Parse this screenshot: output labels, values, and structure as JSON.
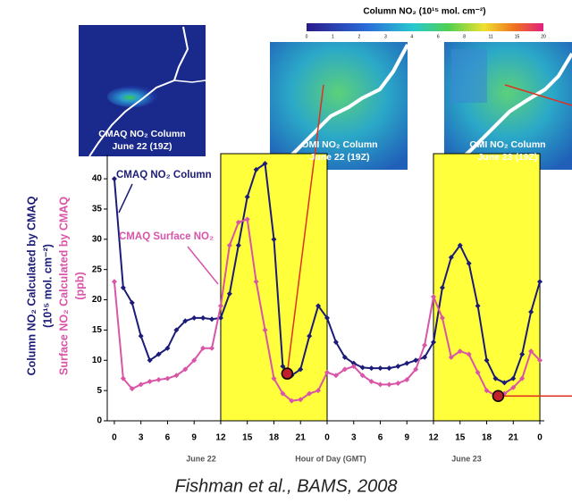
{
  "chart_data": {
    "type": "line",
    "x": [
      0,
      1,
      2,
      3,
      4,
      5,
      6,
      7,
      8,
      9,
      10,
      11,
      12,
      13,
      14,
      15,
      16,
      17,
      18,
      19,
      20,
      21,
      22,
      23,
      24,
      25,
      26,
      27,
      28,
      29,
      30,
      31,
      32,
      33,
      34,
      35,
      36,
      37,
      38,
      39,
      40,
      41,
      42,
      43,
      44,
      45,
      46,
      47,
      48
    ],
    "series": [
      {
        "name": "CMAQ  NO₂ Column",
        "color": "#1c1c78",
        "axis_label": [
          "Column NO₂ Calculated by CMAQ",
          "(10¹⁵ mol. cm⁻²)"
        ],
        "values": [
          40,
          22,
          19.5,
          14,
          10,
          11,
          12,
          15,
          16.5,
          17,
          17,
          16.8,
          17,
          21,
          29,
          37,
          41.5,
          42.5,
          30,
          9,
          7.5,
          8.5,
          14,
          19,
          17,
          13,
          10.5,
          9.5,
          8.8,
          8.7,
          8.7,
          8.7,
          9,
          9.5,
          10,
          10.5,
          13,
          22,
          27,
          29,
          26,
          19,
          10,
          7,
          6.3,
          7,
          11,
          18,
          23
        ]
      },
      {
        "name": "CMAQ Surface NO₂",
        "color": "#d855a8",
        "axis_label": [
          "Surface NO₂ Calculated by CMAQ",
          "(ppb)"
        ],
        "values": [
          23,
          7,
          5.3,
          6,
          6.5,
          6.8,
          7,
          7.5,
          8.5,
          10,
          12,
          12,
          19,
          29,
          32.8,
          33.3,
          23,
          15,
          7,
          4.5,
          3.3,
          3.5,
          4.5,
          5,
          8,
          7.5,
          8.5,
          9,
          7.5,
          6.5,
          6,
          6,
          6.2,
          6.8,
          8.5,
          12.5,
          20.5,
          17,
          10.5,
          11.5,
          11,
          8,
          5,
          4.2,
          4.5,
          5.5,
          7,
          11.5,
          10
        ]
      }
    ],
    "xlim": [
      -0.8,
      48.5
    ],
    "ylim": [
      0,
      44
    ],
    "yticks": [
      0,
      5,
      10,
      15,
      20,
      25,
      30,
      35,
      40
    ],
    "xticks": [
      0,
      3,
      6,
      9,
      12,
      15,
      18,
      21,
      {
        "value": 24,
        "label": "0"
      },
      {
        "value": 27,
        "label": "3"
      },
      {
        "value": 30,
        "label": "6"
      },
      {
        "value": 33,
        "label": "9"
      },
      {
        "value": 36,
        "label": "12"
      },
      {
        "value": 39,
        "label": "15"
      },
      {
        "value": 42,
        "label": "18"
      },
      {
        "value": 45,
        "label": "21"
      },
      {
        "value": 48,
        "label": "0"
      }
    ],
    "x_labels": [
      "June 22",
      "Hour of Day (GMT)",
      "June 23"
    ],
    "highlight_spans": [
      [
        12,
        24
      ],
      [
        36,
        48
      ]
    ],
    "circled_points": [
      {
        "x": 19.5,
        "y": 7.8
      },
      {
        "x": 43.3,
        "y": 4.1
      }
    ],
    "colorbar": {
      "title": "Column NO₂ (10¹⁵ mol. cm⁻²)",
      "ticks": [
        0,
        1,
        2,
        3,
        4,
        6,
        8,
        11,
        15,
        20
      ]
    },
    "insets": [
      {
        "lines": [
          "CMAQ NO₂ Column",
          "June 22 (19Z)"
        ]
      },
      {
        "lines": [
          "OMI NO₂ Column",
          "June  22 (19Z)"
        ]
      },
      {
        "lines": [
          "OMI NO₂ Column",
          "June 23 (19Z)"
        ]
      }
    ],
    "caption": "Fishman et al., BAMS, 2008"
  }
}
